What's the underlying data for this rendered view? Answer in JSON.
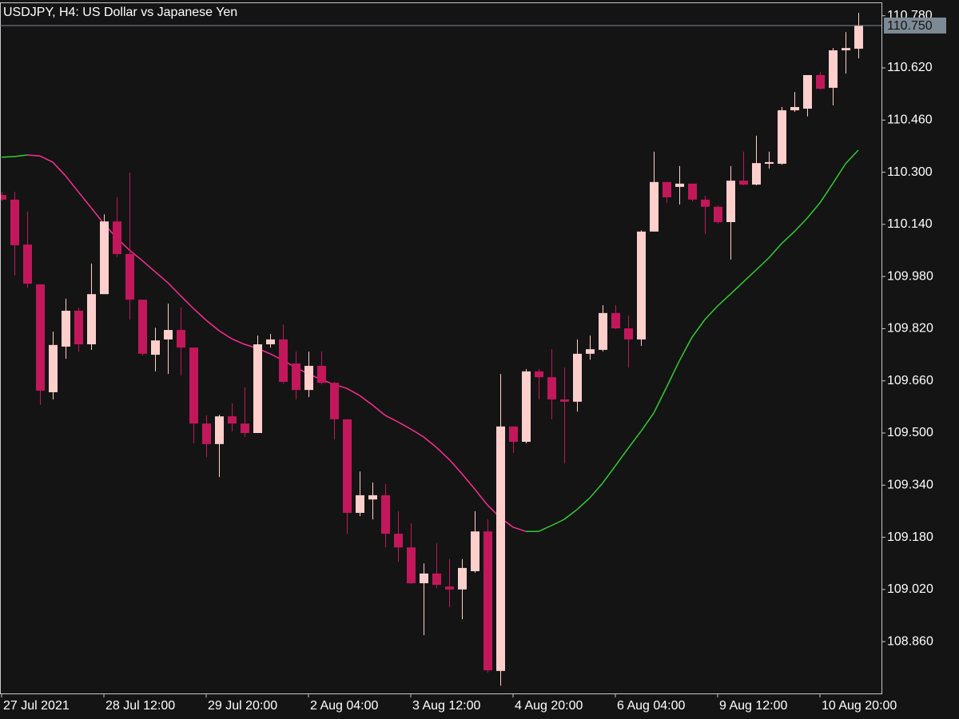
{
  "chart_data": {
    "type": "candlestick",
    "title": "USDJPY, H4:  US Dollar vs Japanese Yen",
    "categories": [
      "27 Jul 2021",
      null,
      null,
      null,
      null,
      null,
      null,
      null,
      "28 Jul 12:00",
      null,
      null,
      null,
      null,
      null,
      null,
      null,
      "29 Jul 20:00",
      null,
      null,
      null,
      null,
      null,
      null,
      null,
      "2 Aug 04:00",
      null,
      null,
      null,
      null,
      null,
      null,
      null,
      "3 Aug 12:00",
      null,
      null,
      null,
      null,
      null,
      null,
      null,
      "4 Aug 20:00",
      null,
      null,
      null,
      null,
      null,
      null,
      null,
      "6 Aug 04:00",
      null,
      null,
      null,
      null,
      null,
      null,
      null,
      "9 Aug 12:00",
      null,
      null,
      null,
      null,
      null,
      null,
      null,
      "10 Aug 20:00",
      null,
      null,
      null
    ],
    "open": [
      110.23,
      110.216,
      110.078,
      109.956,
      109.625,
      109.765,
      109.875,
      109.772,
      109.926,
      110.149,
      110.049,
      109.909,
      109.74,
      109.787,
      109.816,
      109.762,
      109.529,
      109.466,
      109.551,
      109.529,
      109.5,
      109.772,
      109.787,
      109.713,
      109.632,
      109.706,
      109.654,
      109.542,
      109.255,
      109.296,
      109.309,
      109.191,
      109.149,
      109.039,
      109.069,
      109.029,
      109.02,
      109.076,
      109.198,
      108.77,
      109.52,
      109.473,
      109.689,
      109.671,
      109.603,
      109.596,
      109.743,
      109.755,
      109.868,
      109.821,
      109.787,
      110.118,
      110.27,
      110.255,
      110.265,
      110.216,
      110.194,
      110.147,
      110.274,
      110.262,
      110.326,
      110.326,
      110.49,
      110.495,
      110.598,
      110.559,
      110.674,
      110.679
    ],
    "high": [
      110.24,
      110.24,
      110.179,
      109.956,
      109.811,
      109.912,
      109.885,
      110.02,
      110.171,
      110.223,
      110.299,
      109.909,
      109.823,
      109.897,
      109.885,
      109.762,
      109.554,
      109.556,
      109.591,
      109.64,
      109.799,
      109.804,
      109.833,
      109.75,
      109.75,
      109.75,
      109.657,
      109.542,
      109.382,
      109.348,
      109.343,
      109.26,
      109.223,
      109.1,
      109.162,
      109.113,
      109.113,
      109.26,
      109.235,
      109.681,
      109.52,
      109.696,
      109.696,
      109.757,
      109.701,
      109.787,
      109.799,
      109.892,
      109.892,
      109.86,
      110.122,
      110.363,
      110.27,
      110.319,
      110.265,
      110.228,
      110.198,
      110.319,
      110.363,
      110.412,
      110.363,
      110.5,
      110.546,
      110.598,
      110.608,
      110.681,
      110.73,
      110.789
    ],
    "low": [
      110.211,
      109.983,
      109.946,
      109.586,
      109.603,
      109.728,
      109.75,
      109.755,
      109.926,
      110.039,
      109.848,
      109.738,
      109.689,
      109.681,
      109.676,
      109.468,
      109.426,
      109.365,
      109.505,
      109.488,
      109.5,
      109.762,
      109.652,
      109.603,
      109.61,
      109.649,
      109.48,
      109.191,
      109.245,
      109.235,
      109.149,
      109.105,
      109.037,
      108.88,
      109.024,
      108.966,
      108.929,
      109.071,
      108.765,
      108.725,
      109.439,
      109.468,
      109.603,
      109.542,
      109.407,
      109.566,
      109.725,
      109.75,
      109.819,
      109.701,
      109.767,
      110.118,
      110.206,
      110.201,
      110.211,
      110.11,
      110.142,
      110.032,
      110.26,
      110.26,
      110.311,
      110.323,
      110.485,
      110.471,
      110.554,
      110.505,
      110.603,
      110.649
    ],
    "close": [
      110.216,
      110.076,
      109.958,
      109.63,
      109.77,
      109.875,
      109.772,
      109.926,
      110.149,
      110.049,
      109.909,
      109.743,
      109.784,
      109.816,
      109.762,
      109.529,
      109.466,
      109.551,
      109.529,
      109.5,
      109.772,
      109.787,
      109.657,
      109.632,
      109.706,
      109.654,
      109.542,
      109.255,
      109.309,
      109.309,
      109.191,
      109.149,
      109.039,
      109.069,
      109.034,
      109.02,
      109.086,
      109.198,
      108.772,
      109.52,
      109.473,
      109.689,
      109.671,
      109.603,
      109.596,
      109.743,
      109.757,
      109.868,
      109.821,
      109.787,
      110.118,
      110.27,
      110.223,
      110.265,
      110.216,
      110.194,
      110.147,
      110.274,
      110.262,
      110.328,
      110.331,
      110.49,
      110.5,
      110.598,
      110.556,
      110.674,
      110.681,
      110.75
    ],
    "ma": [
      110.346,
      110.348,
      110.353,
      110.35,
      110.331,
      110.289,
      110.24,
      110.191,
      110.142,
      110.098,
      110.061,
      110.029,
      109.995,
      109.961,
      109.921,
      109.882,
      109.846,
      109.814,
      109.789,
      109.772,
      109.76,
      109.743,
      109.723,
      109.701,
      109.681,
      109.664,
      109.649,
      109.637,
      109.615,
      109.586,
      109.554,
      109.534,
      109.512,
      109.488,
      109.456,
      109.419,
      109.375,
      109.328,
      109.279,
      109.24,
      109.211,
      109.198,
      109.198,
      109.216,
      109.235,
      109.265,
      109.301,
      109.346,
      109.399,
      109.453,
      109.505,
      109.561,
      109.64,
      109.721,
      109.794,
      109.848,
      109.89,
      109.926,
      109.963,
      110.0,
      110.037,
      110.081,
      110.118,
      110.159,
      110.206,
      110.265,
      110.326,
      110.368
    ],
    "up_color": "#ffcfcc",
    "down_color": "#c2185b",
    "ma_rising_color": "#32cd32",
    "ma_falling_color": "#ff2d95",
    "ylim": [
      108.701,
      110.821
    ],
    "yticks": [
      {
        "value": 110.78,
        "label": "110.780"
      },
      {
        "value": 110.62,
        "label": "110.620"
      },
      {
        "value": 110.46,
        "label": "110.460"
      },
      {
        "value": 110.3,
        "label": "110.300"
      },
      {
        "value": 110.14,
        "label": "110.140"
      },
      {
        "value": 109.98,
        "label": "109.980"
      },
      {
        "value": 109.82,
        "label": "109.820"
      },
      {
        "value": 109.66,
        "label": "109.660"
      },
      {
        "value": 109.5,
        "label": "109.500"
      },
      {
        "value": 109.34,
        "label": "109.340"
      },
      {
        "value": 109.18,
        "label": "109.180"
      },
      {
        "value": 109.02,
        "label": "109.020"
      },
      {
        "value": 108.86,
        "label": "108.860"
      }
    ],
    "current_price": {
      "value": 110.75,
      "label": "110.750"
    }
  }
}
